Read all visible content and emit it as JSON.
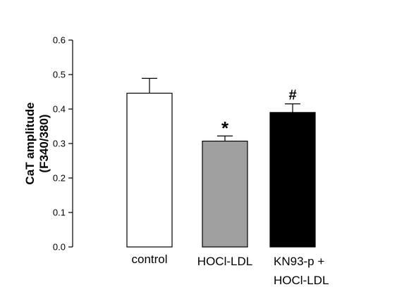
{
  "chart_data": {
    "type": "bar",
    "ylabel": [
      "CaT amplitude",
      "(F340/380)"
    ],
    "ylim": [
      0,
      0.6
    ],
    "yticks": [
      "0.0",
      "0.1",
      "0.2",
      "0.3",
      "0.4",
      "0.5",
      "0.6"
    ],
    "grid": false,
    "categories": [
      [
        "control"
      ],
      [
        "HOCl-LDL"
      ],
      [
        "KN93-p +",
        "HOCl-LDL"
      ]
    ],
    "values": [
      0.446,
      0.307,
      0.39
    ],
    "errors": [
      0.043,
      0.015,
      0.025
    ],
    "annotations": [
      "",
      "*",
      "#"
    ],
    "colors": [
      "#ffffff",
      "#a0a0a0",
      "#000000"
    ],
    "edge_color": "#000000"
  }
}
